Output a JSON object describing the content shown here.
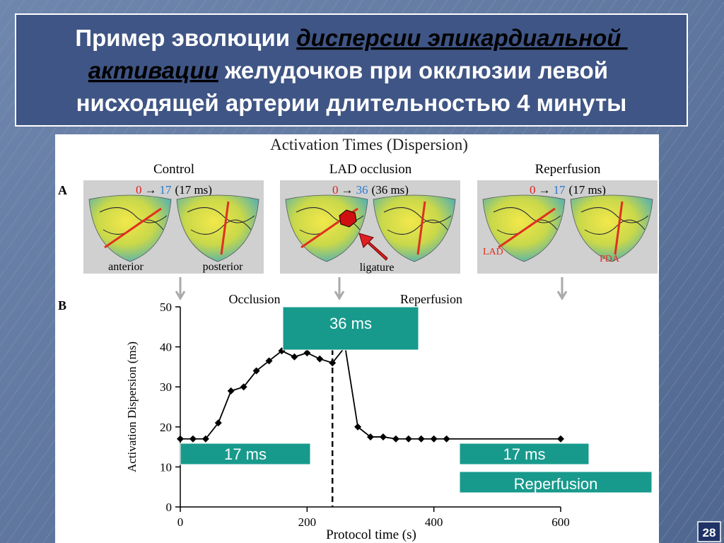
{
  "slide": {
    "title_segments": [
      "Пример эволюции ",
      "дисперсии эпикардиальной ",
      "активации",
      " желудочков при окклюзии левой",
      "нисходящей артерии длительностью 4 минуты"
    ],
    "page_number": "28"
  },
  "figure": {
    "title": "Activation Times (Dispersion)",
    "panel_a_label": "A",
    "panels": [
      {
        "title": "Control",
        "from": "0",
        "arrow": "→",
        "to": "17",
        "duration": "(17 ms)"
      },
      {
        "title": "LAD occlusion",
        "from": "0",
        "arrow": "→",
        "to": "36",
        "duration": "(36 ms)"
      },
      {
        "title": "Reperfusion",
        "from": "0",
        "arrow": "→",
        "to": "17",
        "duration": "(17 ms)"
      }
    ],
    "view_labels": [
      "anterior",
      "posterior"
    ],
    "ligature": "ligature",
    "lad": "LAD",
    "pda": "PDA"
  },
  "chart_data": {
    "type": "line",
    "panel_label": "B",
    "x_label": "Protocol time (s)",
    "y_label": "Activation Dispersion (ms)",
    "annotations": [
      "Occlusion",
      "Reperfusion"
    ],
    "x": [
      0,
      20,
      40,
      60,
      80,
      100,
      120,
      140,
      160,
      180,
      200,
      220,
      240,
      260,
      280,
      300,
      320,
      340,
      360,
      380,
      400,
      420,
      600
    ],
    "series": [
      {
        "name": "Activation Dispersion",
        "color": "#000000",
        "values": [
          17,
          17,
          17,
          21,
          29,
          30,
          34,
          36.5,
          39,
          37.5,
          38.5,
          37,
          36,
          40,
          20,
          17.5,
          17.5,
          17,
          17,
          17,
          17,
          17,
          17
        ]
      }
    ],
    "vlines": [
      240
    ],
    "xlim": [
      0,
      600
    ],
    "ylim": [
      0,
      50
    ],
    "xticks": [
      0,
      200,
      400,
      600
    ],
    "yticks": [
      0,
      10,
      20,
      30,
      40,
      50
    ],
    "callouts": [
      "36 ms",
      "17 ms",
      "17 ms",
      "Reperfusion"
    ]
  }
}
